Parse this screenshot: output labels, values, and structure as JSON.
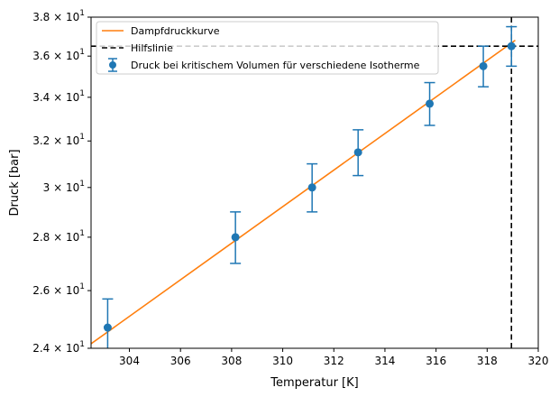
{
  "chart_data": {
    "type": "scatter",
    "xlabel": "Temperatur [K]",
    "ylabel": "Druck [bar]",
    "xlim": [
      302.5,
      320
    ],
    "ylim": [
      24,
      38
    ],
    "yscale": "log",
    "grid": false,
    "legend_position": "top-left",
    "x_ticks": [
      {
        "value": 304,
        "label": "304"
      },
      {
        "value": 306,
        "label": "306"
      },
      {
        "value": 308,
        "label": "308"
      },
      {
        "value": 310,
        "label": "310"
      },
      {
        "value": 312,
        "label": "312"
      },
      {
        "value": 314,
        "label": "314"
      },
      {
        "value": 316,
        "label": "316"
      },
      {
        "value": 318,
        "label": "318"
      },
      {
        "value": 320,
        "label": "320"
      }
    ],
    "y_ticks": [
      {
        "value": 24,
        "mantissa": "2.4",
        "sep": " × ",
        "base": "10",
        "exp": "1"
      },
      {
        "value": 26,
        "mantissa": "2.6",
        "sep": " × ",
        "base": "10",
        "exp": "1"
      },
      {
        "value": 28,
        "mantissa": "2.8",
        "sep": " × ",
        "base": "10",
        "exp": "1"
      },
      {
        "value": 30,
        "mantissa": "3",
        "sep": " × ",
        "base": "10",
        "exp": "1"
      },
      {
        "value": 32,
        "mantissa": "3.2",
        "sep": " × ",
        "base": "10",
        "exp": "1"
      },
      {
        "value": 34,
        "mantissa": "3.4",
        "sep": " × ",
        "base": "10",
        "exp": "1"
      },
      {
        "value": 36,
        "mantissa": "3.6",
        "sep": " × ",
        "base": "10",
        "exp": "1"
      },
      {
        "value": 38,
        "mantissa": "3.8",
        "sep": " × ",
        "base": "10",
        "exp": "1"
      }
    ],
    "series": [
      {
        "name": "Druck bei kritischem Volumen für verschiedene Isotherme",
        "kind": "errorbar",
        "color": "#1f77b4",
        "points": [
          {
            "x": 303.15,
            "y": 24.7,
            "err": 1.0
          },
          {
            "x": 308.15,
            "y": 28.0,
            "err": 1.0
          },
          {
            "x": 311.15,
            "y": 30.0,
            "err": 1.0
          },
          {
            "x": 312.95,
            "y": 31.5,
            "err": 1.0
          },
          {
            "x": 315.75,
            "y": 33.7,
            "err": 1.0
          },
          {
            "x": 317.85,
            "y": 35.5,
            "err": 1.0
          },
          {
            "x": 318.95,
            "y": 36.5,
            "err": 1.0
          }
        ]
      },
      {
        "name": "Dampfdruckkurve",
        "kind": "line",
        "color": "#ff7f0e",
        "points": [
          {
            "x": 302.5,
            "y": 24.15
          },
          {
            "x": 319.1,
            "y": 36.8
          }
        ]
      },
      {
        "name": "Hilfslinie",
        "kind": "crosshair",
        "color": "#000000",
        "x": 318.95,
        "y": 36.5
      }
    ]
  }
}
